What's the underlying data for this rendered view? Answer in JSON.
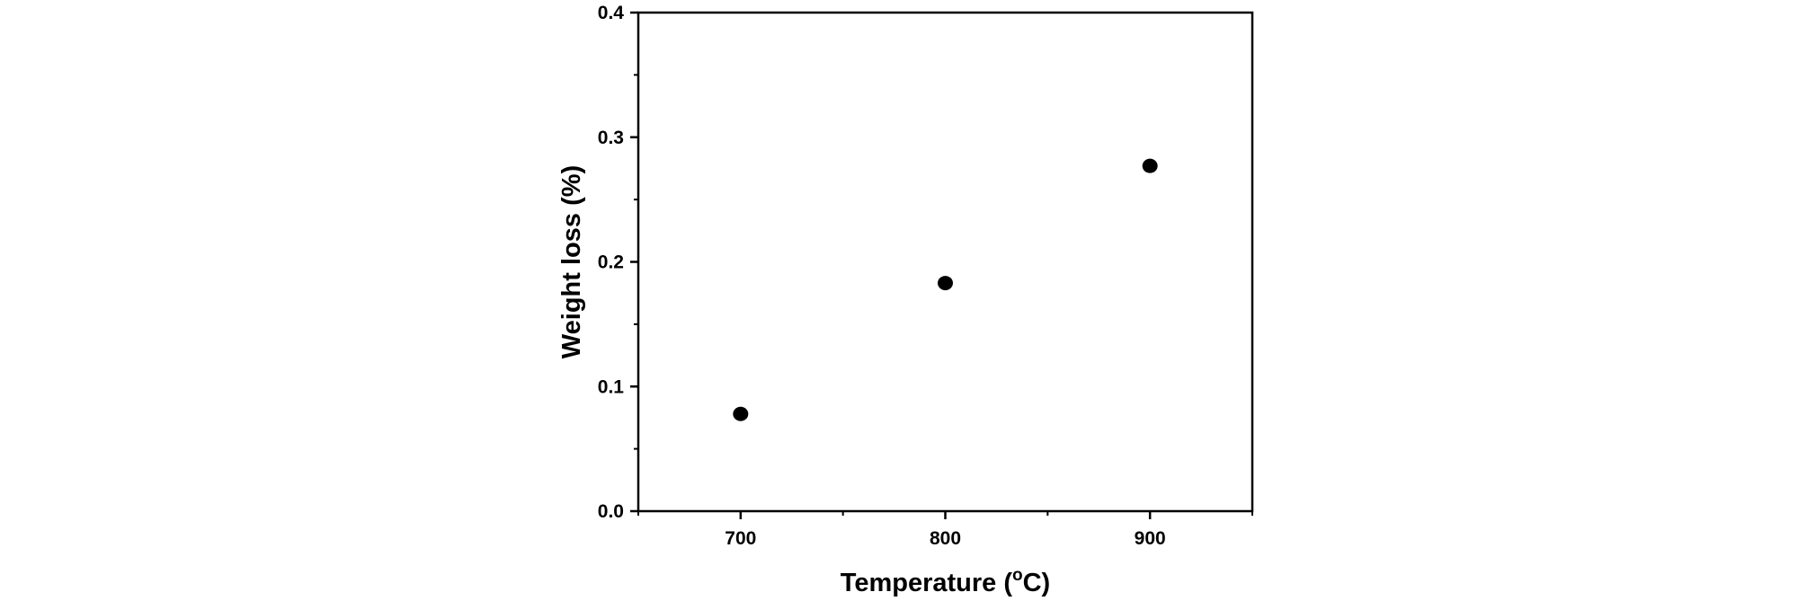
{
  "chart_data": {
    "type": "scatter",
    "xlabel": "Temperature (",
    "xlabel_sup": "o",
    "xlabel_end": "C)",
    "ylabel": "Weight loss (%)",
    "xlim": [
      650,
      950
    ],
    "ylim": [
      0.0,
      0.4
    ],
    "x_ticks": [
      700,
      800,
      900
    ],
    "x_tick_labels": [
      "700",
      "800",
      "900"
    ],
    "y_ticks": [
      0.0,
      0.1,
      0.2,
      0.3,
      0.4
    ],
    "y_tick_labels": [
      "0.0",
      "0.1",
      "0.2",
      "0.3",
      "0.4"
    ],
    "grid": false,
    "marker_color": "#000000",
    "series": [
      {
        "x": [
          700,
          800,
          900
        ],
        "y": [
          0.078,
          0.183,
          0.277
        ]
      }
    ]
  }
}
